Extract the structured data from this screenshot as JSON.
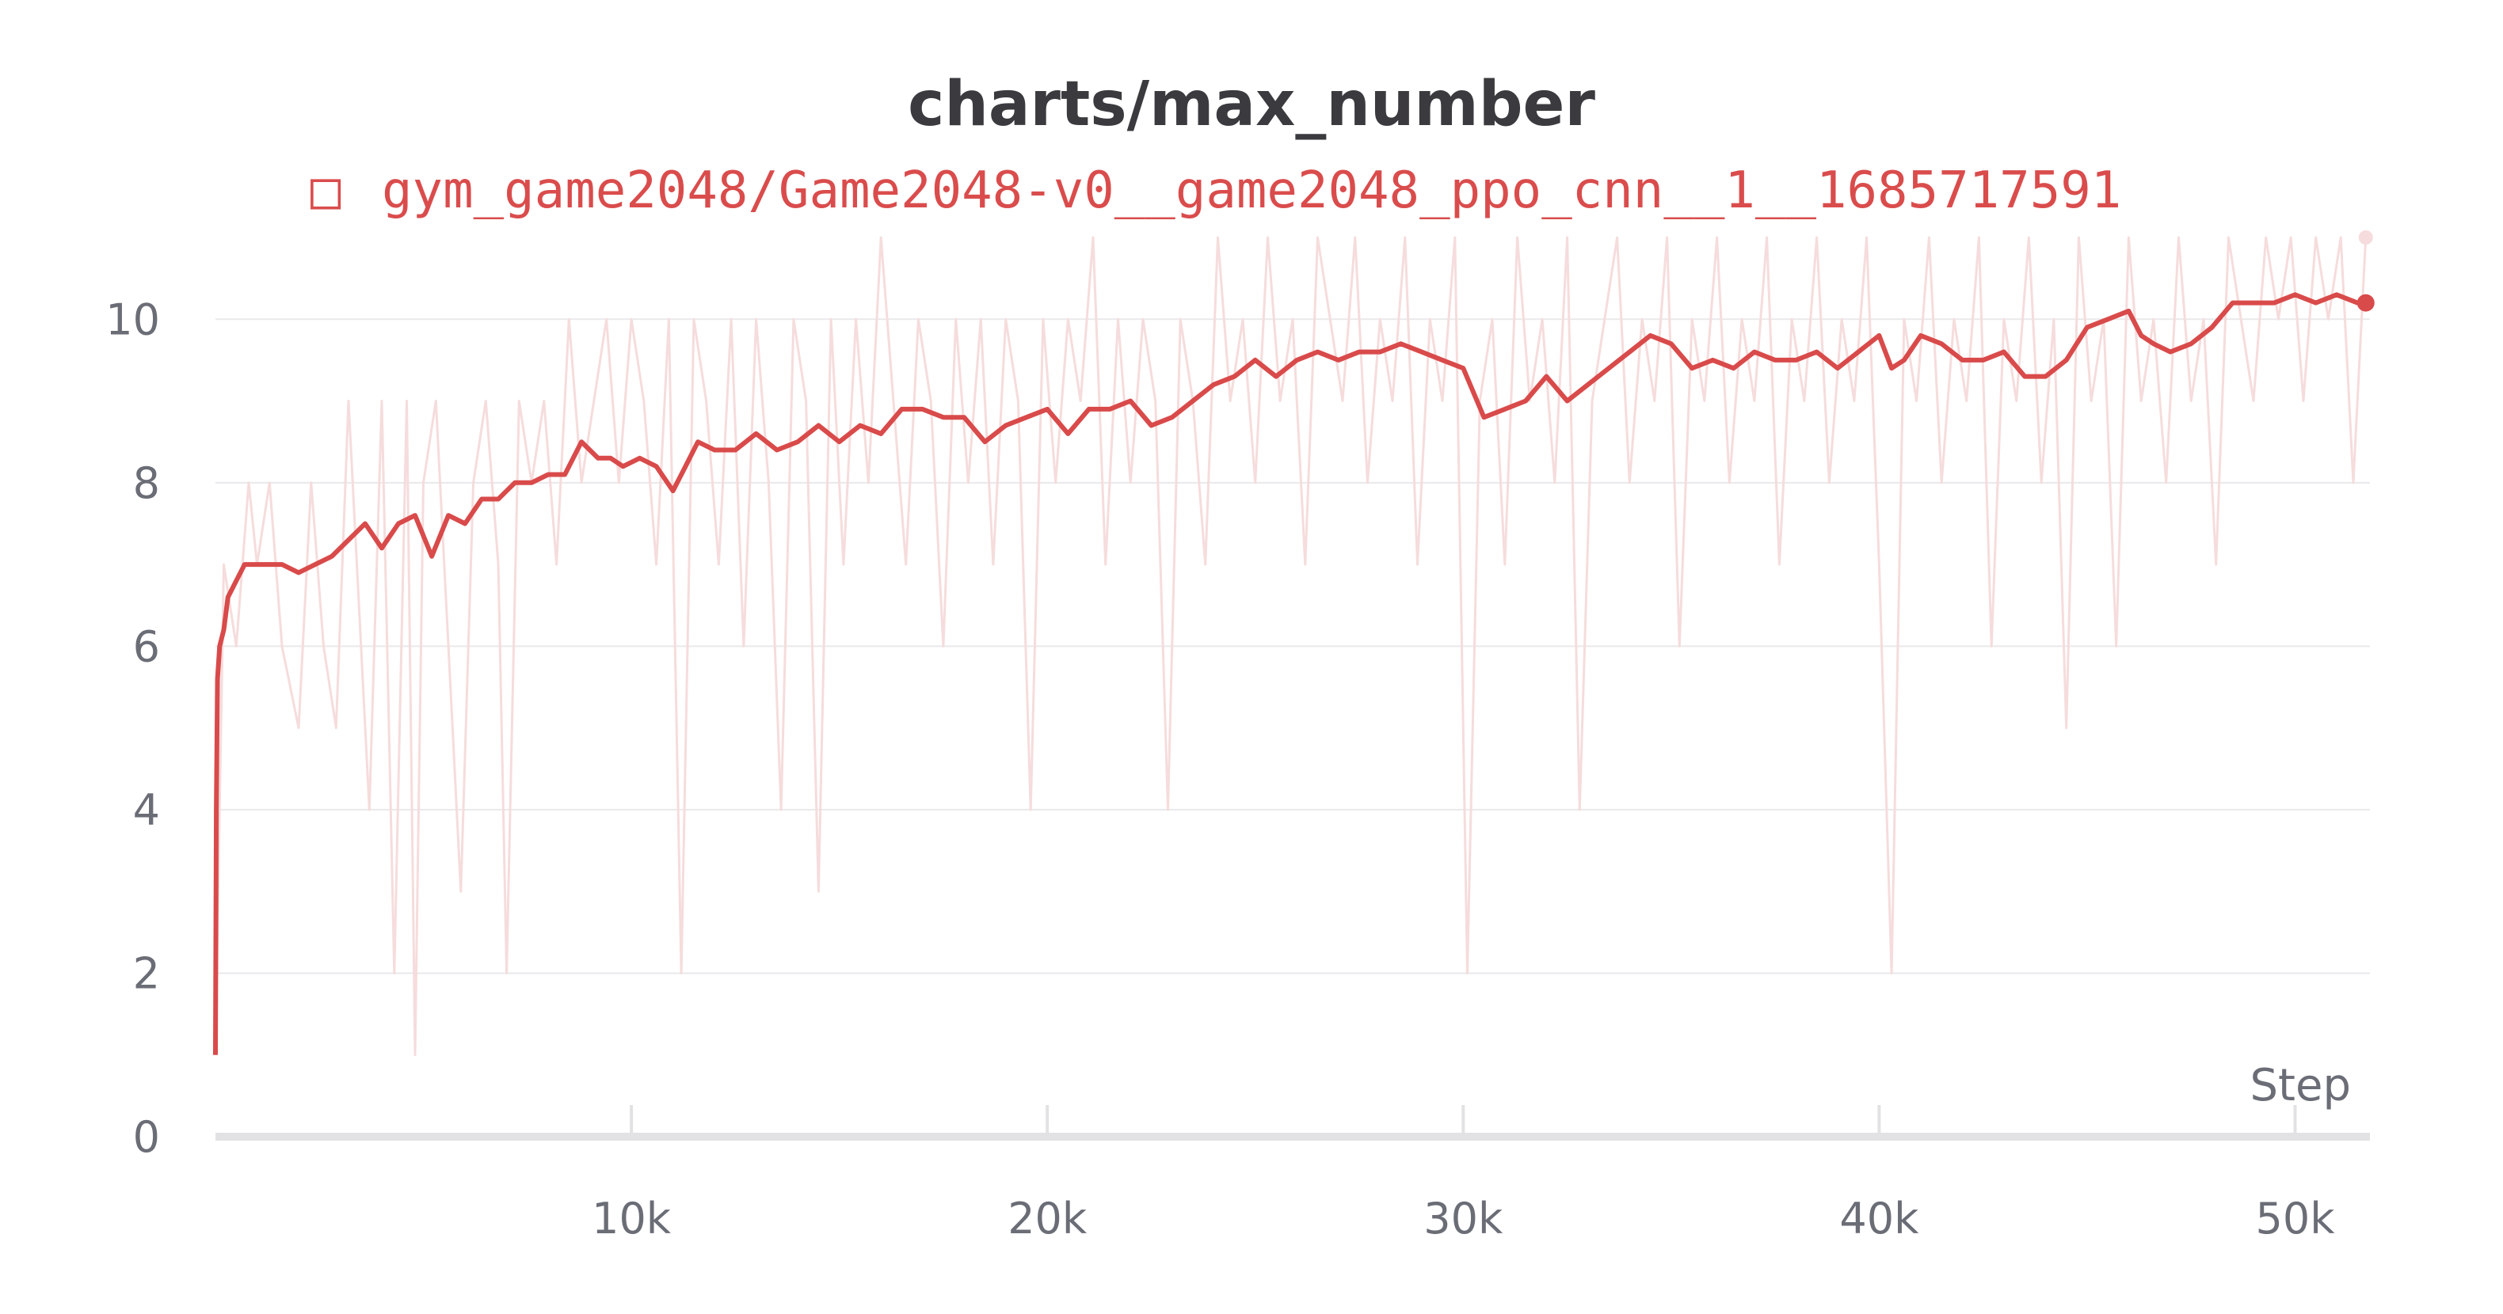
{
  "chart_data": {
    "type": "line",
    "title": "charts/max_number",
    "xlabel": "Step",
    "ylabel": "",
    "xlim": [
      0,
      51800
    ],
    "ylim": [
      0,
      11
    ],
    "x_ticks": [
      {
        "value": 10000,
        "label": "10k"
      },
      {
        "value": 20000,
        "label": "20k"
      },
      {
        "value": 30000,
        "label": "30k"
      },
      {
        "value": 40000,
        "label": "40k"
      },
      {
        "value": 50000,
        "label": "50k"
      }
    ],
    "y_ticks": [
      {
        "value": 0,
        "label": "0"
      },
      {
        "value": 2,
        "label": "2"
      },
      {
        "value": 4,
        "label": "4"
      },
      {
        "value": 6,
        "label": "6"
      },
      {
        "value": 8,
        "label": "8"
      },
      {
        "value": 10,
        "label": "10"
      }
    ],
    "grid": true,
    "legend_position": "top",
    "legend_marker": "□",
    "series": [
      {
        "name": "gym_game2048/Game2048-v0__game2048_ppo_cnn__1__1685717591",
        "color": "#d94a4a",
        "raw_color": "#f6dcdc",
        "smoothed": {
          "x": [
            0,
            20,
            50,
            100,
            200,
            300,
            500,
            700,
            1000,
            1300,
            1600,
            2000,
            2400,
            2800,
            3200,
            3600,
            4000,
            4400,
            4800,
            5200,
            5600,
            6000,
            6400,
            6800,
            7200,
            7600,
            8000,
            8400,
            8800,
            9200,
            9500,
            9800,
            10200,
            10600,
            11000,
            11300,
            11600,
            12000,
            12500,
            13000,
            13500,
            14000,
            14500,
            15000,
            15500,
            16000,
            16500,
            17000,
            17500,
            18000,
            18500,
            19000,
            19500,
            20000,
            20500,
            21000,
            21500,
            22000,
            22500,
            23000,
            23500,
            24000,
            24500,
            25000,
            25500,
            26000,
            26500,
            27000,
            27500,
            28000,
            28500,
            29000,
            29500,
            30000,
            30500,
            31000,
            31500,
            32000,
            32500,
            33000,
            33500,
            34000,
            34500,
            35000,
            35500,
            36000,
            36500,
            37000,
            37500,
            38000,
            38500,
            39000,
            39500,
            40000,
            40300,
            40600,
            41000,
            41500,
            42000,
            42500,
            43000,
            43500,
            44000,
            44500,
            45000,
            45500,
            46000,
            46300,
            46600,
            47000,
            47500,
            48000,
            48500,
            49000,
            49500,
            50000,
            50500,
            51000,
            51500,
            51700
          ],
          "y": [
            1.0,
            4.0,
            5.6,
            6.0,
            6.2,
            6.6,
            6.8,
            7.0,
            7.0,
            7.0,
            7.0,
            6.9,
            7.0,
            7.1,
            7.3,
            7.5,
            7.2,
            7.5,
            7.6,
            7.1,
            7.6,
            7.5,
            7.8,
            7.8,
            8.0,
            8.0,
            8.1,
            8.1,
            8.5,
            8.3,
            8.3,
            8.2,
            8.3,
            8.2,
            7.9,
            8.2,
            8.5,
            8.4,
            8.4,
            8.6,
            8.4,
            8.5,
            8.7,
            8.5,
            8.7,
            8.6,
            8.9,
            8.9,
            8.8,
            8.8,
            8.5,
            8.7,
            8.8,
            8.9,
            8.6,
            8.9,
            8.9,
            9.0,
            8.7,
            8.8,
            9.0,
            9.2,
            9.3,
            9.5,
            9.3,
            9.5,
            9.6,
            9.5,
            9.6,
            9.6,
            9.7,
            9.6,
            9.5,
            9.4,
            8.8,
            8.9,
            9.0,
            9.3,
            9.0,
            9.2,
            9.4,
            9.6,
            9.8,
            9.7,
            9.4,
            9.5,
            9.4,
            9.6,
            9.5,
            9.5,
            9.6,
            9.4,
            9.6,
            9.8,
            9.4,
            9.5,
            9.8,
            9.7,
            9.5,
            9.5,
            9.6,
            9.3,
            9.3,
            9.5,
            9.9,
            10.0,
            10.1,
            9.8,
            9.7,
            9.6,
            9.7,
            9.9,
            10.2,
            10.2,
            10.2,
            10.3,
            10.2,
            10.3,
            10.2,
            10.2
          ]
        },
        "raw": {
          "x": [
            0,
            200,
            500,
            800,
            1000,
            1300,
            1600,
            2000,
            2300,
            2600,
            2900,
            3200,
            3500,
            3700,
            4000,
            4300,
            4600,
            4800,
            5000,
            5300,
            5600,
            5900,
            6200,
            6500,
            6800,
            7000,
            7300,
            7600,
            7900,
            8200,
            8500,
            8800,
            9100,
            9400,
            9700,
            10000,
            10300,
            10600,
            10900,
            11200,
            11500,
            11800,
            12100,
            12400,
            12700,
            13000,
            13300,
            13600,
            13900,
            14200,
            14500,
            14800,
            15100,
            15400,
            15700,
            16000,
            16300,
            16600,
            16900,
            17200,
            17500,
            17800,
            18100,
            18400,
            18700,
            19000,
            19300,
            19600,
            19900,
            20200,
            20500,
            20800,
            21100,
            21400,
            21700,
            22000,
            22300,
            22600,
            22900,
            23200,
            23500,
            23800,
            24100,
            24400,
            24700,
            25000,
            25300,
            25600,
            25900,
            26200,
            26500,
            26800,
            27100,
            27400,
            27700,
            28000,
            28300,
            28600,
            28900,
            29200,
            29500,
            29800,
            30100,
            30400,
            30700,
            31000,
            31300,
            31600,
            31900,
            32200,
            32500,
            32800,
            33100,
            33400,
            33700,
            34000,
            34300,
            34600,
            34900,
            35200,
            35500,
            35800,
            36100,
            36400,
            36700,
            37000,
            37300,
            37600,
            37900,
            38200,
            38500,
            38800,
            39100,
            39400,
            39700,
            40000,
            40300,
            40600,
            40900,
            41200,
            41500,
            41800,
            42100,
            42400,
            42700,
            43000,
            43300,
            43600,
            43900,
            44200,
            44500,
            44800,
            45100,
            45400,
            45700,
            46000,
            46300,
            46600,
            46900,
            47200,
            47500,
            47800,
            48100,
            48400,
            48700,
            49000,
            49300,
            49600,
            49900,
            50200,
            50500,
            50800,
            51100,
            51400,
            51700
          ],
          "y": [
            1,
            7,
            6,
            8,
            7,
            8,
            6,
            5,
            8,
            6,
            5,
            9,
            6,
            4,
            9,
            2,
            9,
            1,
            8,
            9,
            6,
            3,
            8,
            9,
            7,
            2,
            9,
            8,
            9,
            7,
            10,
            8,
            9,
            10,
            8,
            10,
            9,
            7,
            10,
            2,
            10,
            9,
            7,
            10,
            6,
            10,
            8,
            4,
            10,
            9,
            3,
            10,
            7,
            10,
            8,
            11,
            9,
            7,
            10,
            9,
            6,
            10,
            8,
            10,
            7,
            10,
            9,
            4,
            10,
            8,
            10,
            9,
            11,
            7,
            10,
            8,
            10,
            9,
            4,
            10,
            9,
            7,
            11,
            9,
            10,
            8,
            11,
            9,
            10,
            7,
            11,
            10,
            9,
            11,
            8,
            10,
            9,
            11,
            7,
            10,
            9,
            11,
            2,
            9,
            10,
            7,
            11,
            9,
            10,
            8,
            11,
            4,
            9,
            10,
            11,
            8,
            10,
            9,
            11,
            6,
            10,
            9,
            11,
            8,
            10,
            9,
            11,
            7,
            10,
            9,
            11,
            8,
            10,
            9,
            11,
            7,
            2,
            10,
            9,
            11,
            8,
            10,
            9,
            11,
            6,
            10,
            9,
            11,
            8,
            10,
            5,
            11,
            9,
            10,
            6,
            11,
            9,
            10,
            8,
            11,
            9,
            10,
            7,
            11,
            10,
            9,
            11,
            10,
            11,
            9,
            11,
            10,
            11,
            8,
            11
          ]
        }
      }
    ]
  }
}
